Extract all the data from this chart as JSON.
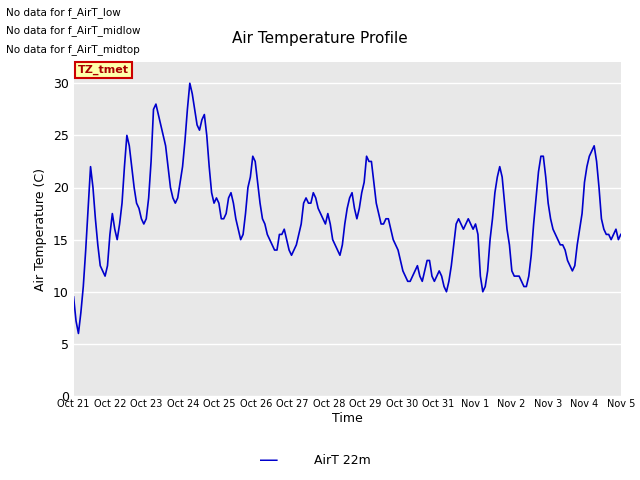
{
  "title": "Air Temperature Profile",
  "xlabel": "Time",
  "ylabel": "Air Temperature (C)",
  "ylim": [
    0,
    32
  ],
  "yticks": [
    0,
    5,
    10,
    15,
    20,
    25,
    30
  ],
  "background_color": "#e8e8e8",
  "line_color": "#0000cc",
  "line_width": 1.2,
  "legend_label": "AirT 22m",
  "text_lines": [
    "No data for f_AirT_low",
    "No data for f_AirT_midlow",
    "No data for f_AirT_midtop"
  ],
  "tz_label": "TZ_tmet",
  "x_tick_labels": [
    "Oct 21",
    "Oct 22",
    "Oct 23",
    "Oct 24",
    "Oct 25",
    "Oct 26",
    "Oct 27",
    "Oct 28",
    "Oct 29",
    "Oct 30",
    "Oct 31",
    "Nov 1",
    "Nov 2",
    "Nov 3",
    "Nov 4",
    "Nov 5"
  ],
  "temperature_data": [
    9.5,
    7.2,
    6.0,
    8.0,
    10.5,
    14.0,
    18.0,
    22.0,
    20.0,
    17.0,
    14.5,
    12.5,
    12.0,
    11.5,
    12.5,
    15.5,
    17.5,
    16.0,
    15.0,
    16.5,
    18.5,
    22.0,
    25.0,
    24.0,
    22.0,
    20.0,
    18.5,
    18.0,
    17.0,
    16.5,
    17.0,
    19.0,
    22.5,
    27.5,
    28.0,
    27.0,
    26.0,
    25.0,
    24.0,
    22.0,
    20.0,
    19.0,
    18.5,
    19.0,
    20.5,
    22.0,
    24.5,
    27.5,
    30.0,
    29.0,
    27.5,
    26.0,
    25.5,
    26.5,
    27.0,
    25.0,
    22.0,
    19.5,
    18.5,
    19.0,
    18.5,
    17.0,
    17.0,
    17.5,
    19.0,
    19.5,
    18.5,
    17.0,
    16.0,
    15.0,
    15.5,
    17.5,
    20.0,
    21.0,
    23.0,
    22.5,
    20.5,
    18.5,
    17.0,
    16.5,
    15.5,
    15.0,
    14.5,
    14.0,
    14.0,
    15.5,
    15.5,
    16.0,
    15.0,
    14.0,
    13.5,
    14.0,
    14.5,
    15.5,
    16.5,
    18.5,
    19.0,
    18.5,
    18.5,
    19.5,
    19.0,
    18.0,
    17.5,
    17.0,
    16.5,
    17.5,
    16.5,
    15.0,
    14.5,
    14.0,
    13.5,
    14.5,
    16.5,
    18.0,
    19.0,
    19.5,
    18.0,
    17.0,
    18.0,
    19.5,
    20.5,
    23.0,
    22.5,
    22.5,
    20.5,
    18.5,
    17.5,
    16.5,
    16.5,
    17.0,
    17.0,
    16.0,
    15.0,
    14.5,
    14.0,
    13.0,
    12.0,
    11.5,
    11.0,
    11.0,
    11.5,
    12.0,
    12.5,
    11.5,
    11.0,
    12.0,
    13.0,
    13.0,
    11.5,
    11.0,
    11.5,
    12.0,
    11.5,
    10.5,
    10.0,
    11.0,
    12.5,
    14.5,
    16.5,
    17.0,
    16.5,
    16.0,
    16.5,
    17.0,
    16.5,
    16.0,
    16.5,
    15.5,
    11.5,
    10.0,
    10.5,
    12.0,
    15.0,
    17.0,
    19.5,
    21.0,
    22.0,
    21.0,
    18.5,
    16.0,
    14.5,
    12.0,
    11.5,
    11.5,
    11.5,
    11.0,
    10.5,
    10.5,
    11.5,
    13.5,
    16.5,
    19.0,
    21.5,
    23.0,
    23.0,
    21.0,
    18.5,
    17.0,
    16.0,
    15.5,
    15.0,
    14.5,
    14.5,
    14.0,
    13.0,
    12.5,
    12.0,
    12.5,
    14.5,
    16.0,
    17.5,
    20.5,
    22.0,
    23.0,
    23.5,
    24.0,
    22.5,
    20.0,
    17.0,
    16.0,
    15.5,
    15.5,
    15.0,
    15.5,
    16.0,
    15.0,
    15.5
  ]
}
